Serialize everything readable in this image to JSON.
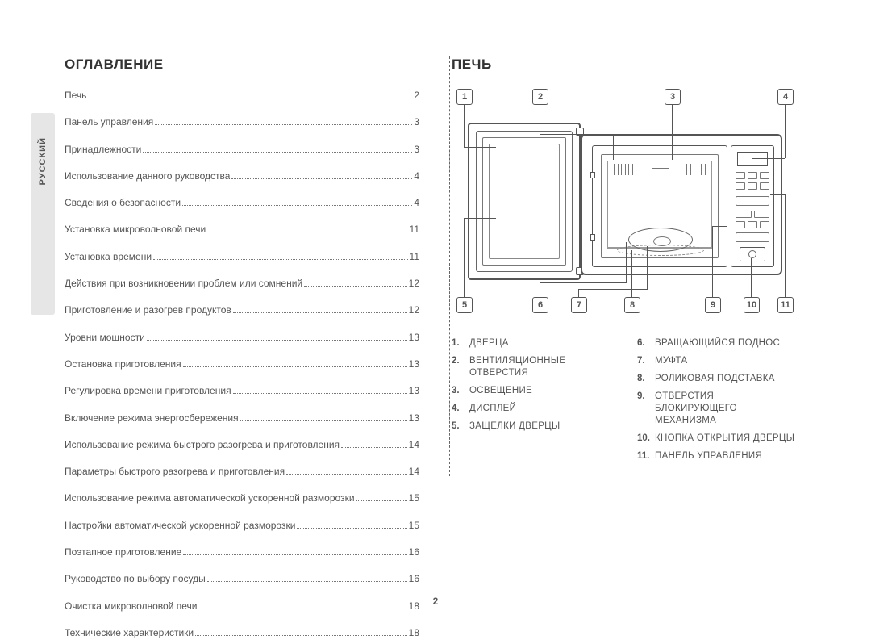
{
  "language_tab": "РУССКИЙ",
  "page_number": "2",
  "left": {
    "heading": "ОГЛАВЛЕНИЕ",
    "toc": [
      {
        "title": "Печь",
        "page": "2"
      },
      {
        "title": "Панель управления",
        "page": "3"
      },
      {
        "title": "Принадлежности",
        "page": "3"
      },
      {
        "title": "Использование данного руководства",
        "page": "4"
      },
      {
        "title": "Сведения о безопасности",
        "page": "4"
      },
      {
        "title": "Установка микроволновой печи",
        "page": "11"
      },
      {
        "title": "Установка времени",
        "page": "11"
      },
      {
        "title": "Действия при возникновении проблем или сомнений",
        "page": "12"
      },
      {
        "title": "Приготовление и разогрев продуктов",
        "page": "12"
      },
      {
        "title": "Уровни мощности",
        "page": "13"
      },
      {
        "title": "Остановка приготовления",
        "page": "13"
      },
      {
        "title": "Регулировка времени приготовления",
        "page": "13"
      },
      {
        "title": "Включение режима энергосбережения",
        "page": "13"
      },
      {
        "title": "Использование режима быстрого разогрева и приготовления",
        "page": "14"
      },
      {
        "title": "Параметры быстрого разогрева и приготовления",
        "page": "14"
      },
      {
        "title": "Использование режима автоматической ускоренной разморозки",
        "page": "15"
      },
      {
        "title": "Настройки автоматической ускоренной разморозки",
        "page": "15"
      },
      {
        "title": "Поэтапное приготовление",
        "page": "16"
      },
      {
        "title": "Руководство по выбору посуды",
        "page": "16"
      },
      {
        "title": "Очистка микроволновой печи",
        "page": "18"
      },
      {
        "title": "Технические характеристики",
        "page": "18"
      }
    ]
  },
  "right": {
    "heading": "ПЕЧЬ",
    "callouts_top": [
      "1",
      "2",
      "3",
      "4"
    ],
    "callouts_bottom": [
      "5",
      "6",
      "7",
      "8",
      "9",
      "10",
      "11"
    ],
    "legend_left": [
      {
        "n": "1.",
        "t": "ДВЕРЦА"
      },
      {
        "n": "2.",
        "t": "ВЕНТИЛЯЦИОННЫЕ ОТВЕРСТИЯ"
      },
      {
        "n": "3.",
        "t": "ОСВЕЩЕНИЕ"
      },
      {
        "n": "4.",
        "t": "ДИСПЛЕЙ"
      },
      {
        "n": "5.",
        "t": "ЗАЩЕЛКИ ДВЕРЦЫ"
      }
    ],
    "legend_right": [
      {
        "n": "6.",
        "t": "ВРАЩАЮЩИЙСЯ ПОДНОС"
      },
      {
        "n": "7.",
        "t": "МУФТА"
      },
      {
        "n": "8.",
        "t": "РОЛИКОВАЯ ПОДСТАВКА"
      },
      {
        "n": "9.",
        "t": "ОТВЕРСТИЯ БЛОКИРУЮЩЕГО МЕХАНИЗМА"
      },
      {
        "n": "10.",
        "t": "КНОПКА ОТКРЫТИЯ ДВЕРЦЫ"
      },
      {
        "n": "11.",
        "t": "ПАНЕЛЬ УПРАВЛЕНИЯ"
      }
    ]
  }
}
